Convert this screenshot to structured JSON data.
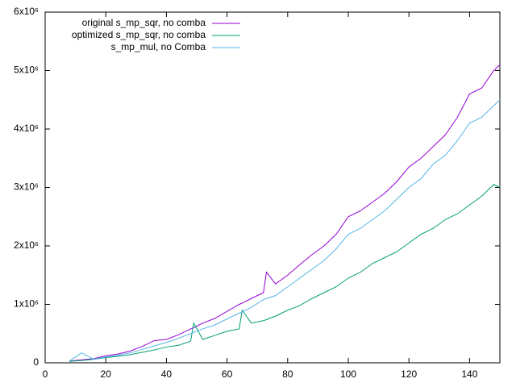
{
  "chart_data": {
    "type": "line",
    "x": [
      8,
      12,
      16,
      20,
      24,
      28,
      32,
      36,
      40,
      44,
      48,
      49,
      52,
      56,
      60,
      64,
      65,
      68,
      72,
      73,
      76,
      80,
      84,
      88,
      92,
      96,
      100,
      104,
      108,
      112,
      116,
      120,
      124,
      128,
      132,
      136,
      140,
      144,
      148,
      150
    ],
    "series": [
      {
        "name": "original s_mp_sqr, no comba",
        "color": "#9400d3",
        "values": [
          30000,
          50000,
          70000,
          120000,
          150000,
          200000,
          280000,
          380000,
          400000,
          480000,
          580000,
          600000,
          680000,
          760000,
          880000,
          1000000,
          1020000,
          1100000,
          1200000,
          1550000,
          1350000,
          1500000,
          1680000,
          1850000,
          2000000,
          2200000,
          2500000,
          2600000,
          2750000,
          2900000,
          3100000,
          3350000,
          3500000,
          3700000,
          3900000,
          4200000,
          4600000,
          4700000,
          5000000,
          5100000
        ]
      },
      {
        "name": "optimized s_mp_sqr, no comba",
        "color": "#009e73",
        "values": [
          25000,
          40000,
          60000,
          90000,
          110000,
          140000,
          180000,
          220000,
          270000,
          300000,
          370000,
          680000,
          400000,
          470000,
          540000,
          580000,
          900000,
          680000,
          720000,
          740000,
          800000,
          900000,
          980000,
          1100000,
          1200000,
          1300000,
          1450000,
          1550000,
          1700000,
          1800000,
          1900000,
          2050000,
          2200000,
          2300000,
          2450000,
          2550000,
          2700000,
          2850000,
          3050000,
          3000000
        ]
      },
      {
        "name": "s_mp_mul, no Comba",
        "color": "#56b4e9",
        "values": [
          30000,
          170000,
          60000,
          100000,
          130000,
          170000,
          230000,
          290000,
          350000,
          420000,
          500000,
          520000,
          580000,
          650000,
          750000,
          850000,
          870000,
          950000,
          1080000,
          1100000,
          1150000,
          1300000,
          1450000,
          1600000,
          1750000,
          1950000,
          2200000,
          2300000,
          2450000,
          2600000,
          2800000,
          3000000,
          3150000,
          3400000,
          3550000,
          3800000,
          4100000,
          4200000,
          4400000,
          4500000
        ]
      }
    ],
    "xlim": [
      0,
      150
    ],
    "xticks": [
      0,
      20,
      40,
      60,
      80,
      100,
      120,
      140
    ],
    "ylim": [
      0,
      6000000
    ],
    "yticks": [
      0,
      {
        "value": 1000000,
        "label": "1x10⁶"
      },
      {
        "value": 2000000,
        "label": "2x10⁶"
      },
      {
        "value": 3000000,
        "label": "3x10⁶"
      },
      {
        "value": 4000000,
        "label": "4x10⁶"
      },
      {
        "value": 5000000,
        "label": "5x10⁶"
      },
      {
        "value": 6000000,
        "label": "6x10⁶"
      }
    ],
    "grid": false,
    "legend": "top-left"
  }
}
